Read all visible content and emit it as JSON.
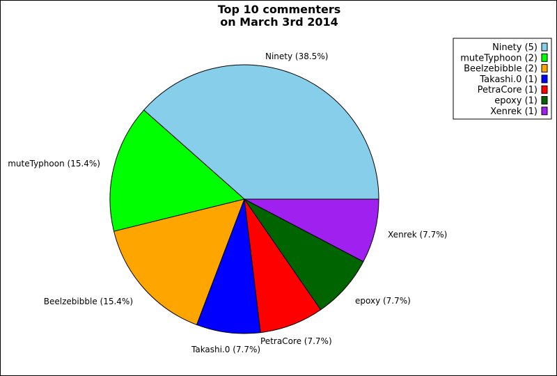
{
  "chart_data": {
    "type": "pie",
    "title": [
      "Top 10 commenters",
      "on March 3rd 2014"
    ],
    "slices": [
      {
        "name": "Ninety",
        "count": 5,
        "percent": "38.5%",
        "color": "#87ceeb",
        "label": "Ninety (38.5%)",
        "legend": "Ninety (5)"
      },
      {
        "name": "muteTyphoon",
        "count": 2,
        "percent": "15.4%",
        "color": "#00ff00",
        "label": "muteTyphoon (15.4%)",
        "legend": "muteTyphoon (2)"
      },
      {
        "name": "Beelzebibble",
        "count": 2,
        "percent": "15.4%",
        "color": "#ffa500",
        "label": "Beelzebibble (15.4%)",
        "legend": "Beelzebibble (2)"
      },
      {
        "name": "Takashi.0",
        "count": 1,
        "percent": "7.7%",
        "color": "#0000ff",
        "label": "Takashi.0 (7.7%)",
        "legend": "Takashi.0 (1)"
      },
      {
        "name": "PetraCore",
        "count": 1,
        "percent": "7.7%",
        "color": "#ff0000",
        "label": "PetraCore (7.7%)",
        "legend": "PetraCore (1)"
      },
      {
        "name": "epoxy",
        "count": 1,
        "percent": "7.7%",
        "color": "#006400",
        "label": "epoxy (7.7%)",
        "legend": "epoxy (1)"
      },
      {
        "name": "Xenrek",
        "count": 1,
        "percent": "7.7%",
        "color": "#a020f0",
        "label": "Xenrek (7.7%)",
        "legend": "Xenrek (1)"
      }
    ],
    "legend_position": "top-right"
  }
}
